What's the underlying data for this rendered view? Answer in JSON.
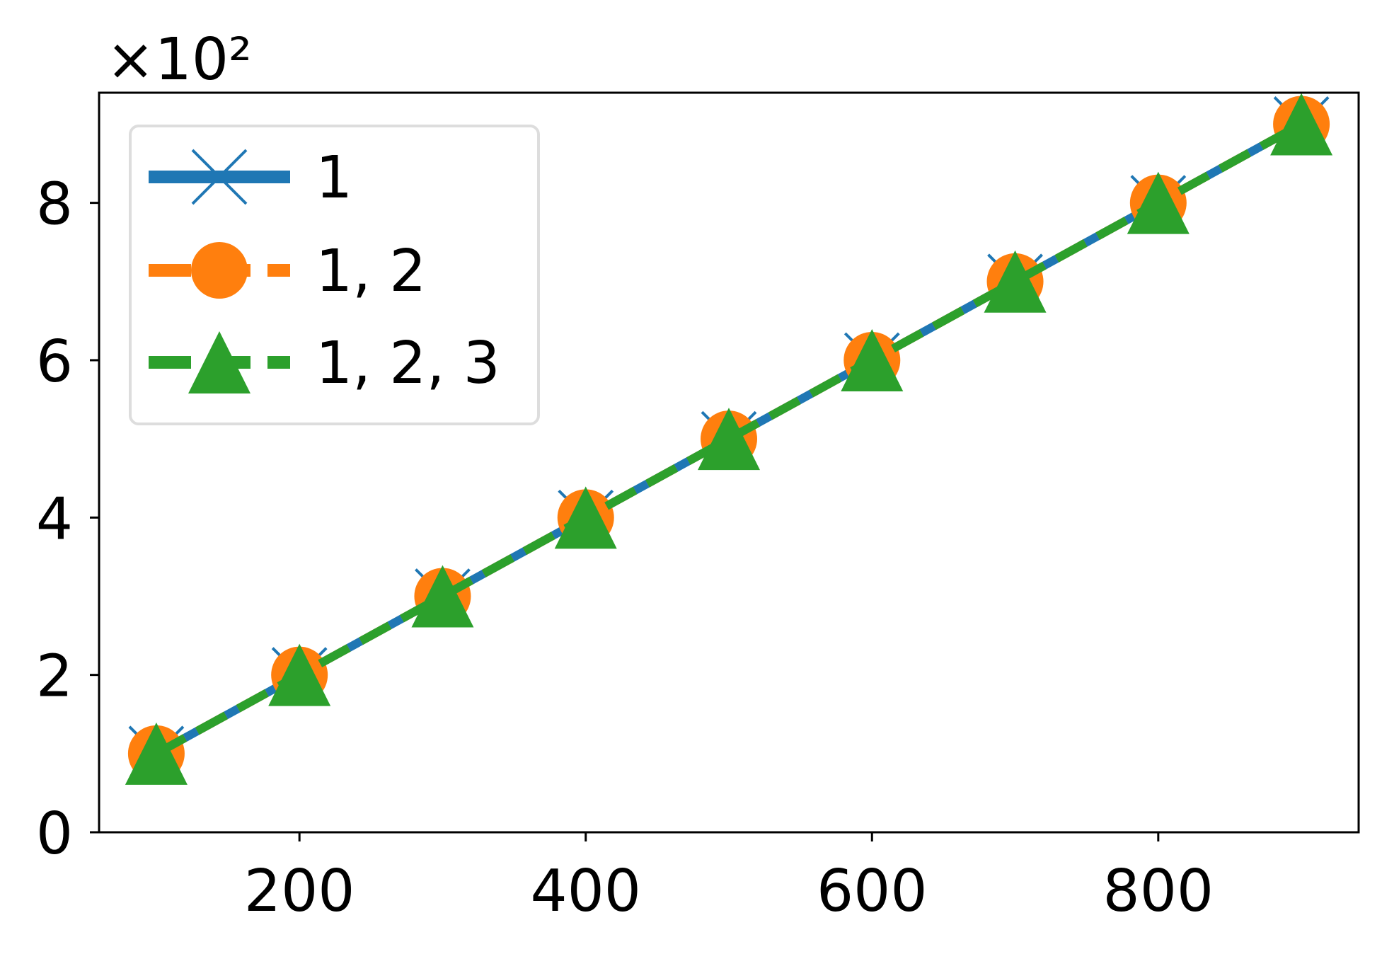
{
  "chart_data": {
    "type": "line",
    "title": "",
    "xlabel": "",
    "ylabel": "",
    "y_multiplier_label": "×10²",
    "x": [
      100,
      200,
      300,
      400,
      500,
      600,
      700,
      800,
      900
    ],
    "xlim": [
      60,
      940
    ],
    "ylim": [
      0,
      940
    ],
    "xticks": [
      200,
      400,
      600,
      800
    ],
    "xtick_labels": [
      "200",
      "400",
      "600",
      "800"
    ],
    "yticks": [
      0,
      200,
      400,
      600,
      800
    ],
    "ytick_labels": [
      "0",
      "2",
      "4",
      "6",
      "8"
    ],
    "grid": false,
    "legend_position": "upper-left",
    "series": [
      {
        "name": "1",
        "values": [
          100,
          200,
          300,
          400,
          500,
          600,
          700,
          800,
          900
        ],
        "color": "#1f77b4",
        "marker": "x",
        "linestyle": "solid"
      },
      {
        "name": "1, 2",
        "values": [
          100,
          200,
          300,
          400,
          500,
          600,
          700,
          800,
          900
        ],
        "color": "#ff7f0e",
        "marker": "circle",
        "linestyle": "dashed"
      },
      {
        "name": "1, 2, 3",
        "values": [
          100,
          200,
          300,
          400,
          500,
          600,
          700,
          800,
          900
        ],
        "color": "#2ca02c",
        "marker": "triangle",
        "linestyle": "dashed"
      }
    ]
  }
}
